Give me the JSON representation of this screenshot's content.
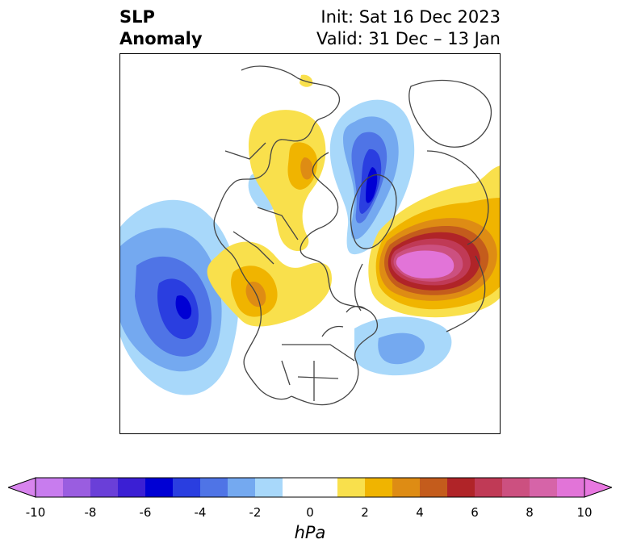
{
  "header": {
    "title_line1": "SLP",
    "title_line2": "Anomaly",
    "init_text": "Init: Sat 16 Dec 2023",
    "valid_text": "Valid: 31 Dec – 13 Jan"
  },
  "colorbar": {
    "unit": "hPa",
    "range": [
      -10,
      10
    ],
    "extend": "both",
    "tick_labels": [
      "-10",
      "-8",
      "-6",
      "-4",
      "-2",
      "0",
      "2",
      "4",
      "6",
      "8",
      "10"
    ],
    "bins": [
      {
        "from": -10,
        "to": -9,
        "color": "#c87cee"
      },
      {
        "from": -9,
        "to": -8,
        "color": "#9a5de0"
      },
      {
        "from": -8,
        "to": -7,
        "color": "#6a3fd8"
      },
      {
        "from": -7,
        "to": -6,
        "color": "#3b1fd4"
      },
      {
        "from": -6,
        "to": -5,
        "color": "#0000d4"
      },
      {
        "from": -5,
        "to": -4,
        "color": "#2a3ee0"
      },
      {
        "from": -4,
        "to": -3,
        "color": "#4f74e6"
      },
      {
        "from": -3,
        "to": -2,
        "color": "#74a9f0"
      },
      {
        "from": -2,
        "to": -1,
        "color": "#a8d8fa"
      },
      {
        "from": -1,
        "to": 1,
        "color": "#ffffff"
      },
      {
        "from": 1,
        "to": 2,
        "color": "#f9e04c"
      },
      {
        "from": 2,
        "to": 3,
        "color": "#f0b400"
      },
      {
        "from": 3,
        "to": 4,
        "color": "#de8c14"
      },
      {
        "from": 4,
        "to": 5,
        "color": "#c45c1c"
      },
      {
        "from": 5,
        "to": 6,
        "color": "#b02428"
      },
      {
        "from": 6,
        "to": 7,
        "color": "#c03a56"
      },
      {
        "from": 7,
        "to": 8,
        "color": "#cc5080"
      },
      {
        "from": 8,
        "to": 9,
        "color": "#d664a8"
      },
      {
        "from": 9,
        "to": 10,
        "color": "#e274d8"
      }
    ],
    "under_color": "#d884ee",
    "over_color": "#e878e0"
  },
  "map": {
    "projection": "north-polar-stereographic",
    "region": "Northern Hemisphere",
    "land_line_color": "#444444",
    "features": [
      {
        "name": "North Pacific low",
        "sign": "negative",
        "min_hpa": -6
      },
      {
        "name": "Arctic/Siberian low",
        "sign": "negative",
        "min_hpa": -6
      },
      {
        "name": "Greenland–Iceland high",
        "sign": "positive",
        "max_hpa": 10
      },
      {
        "name": "Western North America high",
        "sign": "positive",
        "max_hpa": 4
      },
      {
        "name": "Western Atlantic low",
        "sign": "negative",
        "min_hpa": -4
      }
    ]
  }
}
